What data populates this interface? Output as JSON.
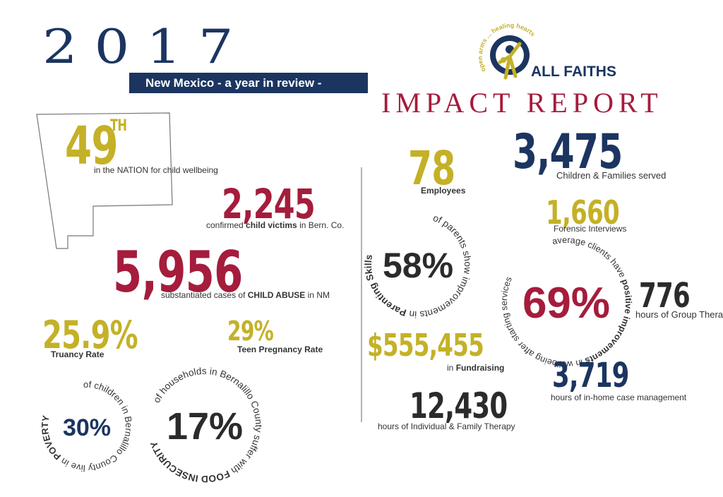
{
  "header": {
    "year": "2017",
    "banner": "New Mexico - a year in review -",
    "tagline": "open arms ... healing hearts",
    "org": "ALL FAITHS",
    "report": "IMPACT REPORT"
  },
  "new_mexico": {
    "rank": {
      "value": "49",
      "suffix": "TH",
      "caption": "in the NATION for child wellbeing"
    },
    "child_victims": {
      "value": "2,245",
      "caption": [
        "confirmed ",
        "child victims",
        " in Bern. Co."
      ]
    },
    "child_abuse": {
      "value": "5,956",
      "caption": [
        "substantiated cases of ",
        "CHILD ABUSE",
        " in NM"
      ]
    },
    "truancy": {
      "value": "25.9%",
      "caption": "Truancy Rate"
    },
    "teen_pregnancy": {
      "value": "29%",
      "caption": "Teen Pregnancy Rate"
    },
    "poverty": {
      "value": "30%",
      "caption": [
        "of children in Bernalillo County live in ",
        "POVERTY"
      ]
    },
    "food_insecurity": {
      "value": "17%",
      "caption": [
        "of households in Bernalillo County suffer with ",
        "FOOD INSECURITY"
      ]
    }
  },
  "all_faiths": {
    "employees": {
      "value": "78",
      "caption": "Employees"
    },
    "served": {
      "value": "3,475",
      "caption": "Children & Families served"
    },
    "forensic": {
      "value": "1,660",
      "caption": "Forensic Interviews"
    },
    "parenting": {
      "value": "58%",
      "caption": [
        "of parents show improvements in ",
        "Parenting Skills"
      ]
    },
    "wellbeing": {
      "value": "69%",
      "caption": [
        "average clients have ",
        "positive improvements",
        " in wellbeing after starting services"
      ]
    },
    "group_therapy": {
      "value": "776",
      "caption": "hours of Group Therapy"
    },
    "fundraising": {
      "value": "$555,455",
      "caption": [
        "in ",
        "Fundraising"
      ]
    },
    "case_management": {
      "value": "3,719",
      "caption": [
        "hours",
        " of in-home case management"
      ]
    },
    "individual_therapy": {
      "value": "12,430",
      "caption": "hours of Individual & Family Therapy"
    }
  }
}
